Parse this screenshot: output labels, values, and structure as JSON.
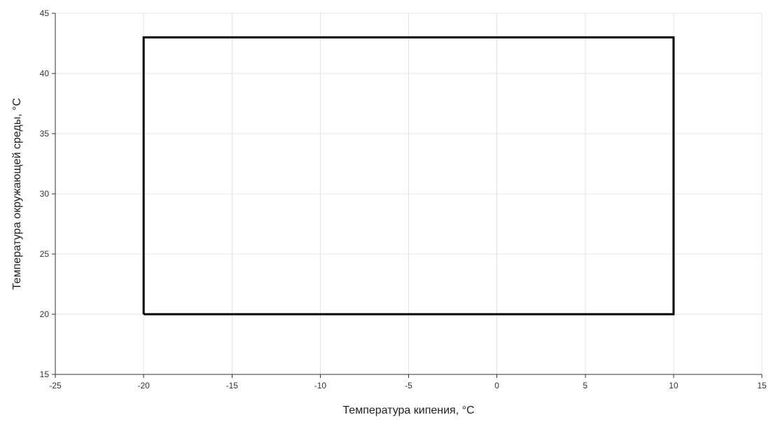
{
  "chart_data": {
    "type": "line",
    "title": "",
    "xlabel": "Температура кипения, °C",
    "ylabel": "Температура окружающей среды, °C",
    "xlim": [
      -25,
      15
    ],
    "ylim": [
      15,
      45
    ],
    "xticks": [
      -25,
      -20,
      -15,
      -10,
      -5,
      0,
      5,
      10,
      15
    ],
    "yticks": [
      15,
      20,
      25,
      30,
      35,
      40,
      45
    ],
    "grid": true,
    "legend": "none",
    "series": [
      {
        "x": [
          -20,
          10,
          10,
          -20,
          -20
        ],
        "y": [
          20,
          20,
          43,
          43,
          20
        ],
        "color": "#000000"
      }
    ]
  }
}
